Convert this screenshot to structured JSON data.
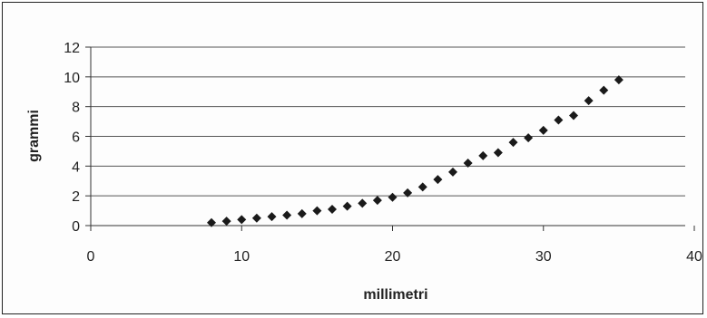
{
  "chart_data": {
    "type": "scatter",
    "xlabel": "millimetri",
    "ylabel": "grammi",
    "xlim": [
      0,
      40
    ],
    "ylim": [
      0,
      12
    ],
    "xticks": [
      "0",
      "10",
      "20",
      "30",
      "40"
    ],
    "yticks": [
      "0",
      "2",
      "4",
      "6",
      "8",
      "10",
      "12"
    ],
    "grid": "horizontal",
    "legend": "none",
    "marker": "diamond",
    "colors": {
      "marker": "#1a1a1a",
      "grid": "#555555",
      "axis": "#333333"
    },
    "series": [
      {
        "x": [
          8,
          9,
          10,
          11,
          12,
          13,
          14,
          15,
          16,
          17,
          18,
          19,
          20,
          21,
          22,
          23,
          24,
          25,
          26,
          27,
          28,
          29,
          30,
          31,
          32,
          33,
          34,
          35
        ],
        "y": [
          0.2,
          0.3,
          0.4,
          0.5,
          0.6,
          0.7,
          0.8,
          1.0,
          1.1,
          1.3,
          1.5,
          1.7,
          1.9,
          2.2,
          2.6,
          3.1,
          3.6,
          4.2,
          4.7,
          4.9,
          5.6,
          5.9,
          6.4,
          7.1,
          7.4,
          8.4,
          9.1,
          9.8
        ]
      }
    ]
  }
}
